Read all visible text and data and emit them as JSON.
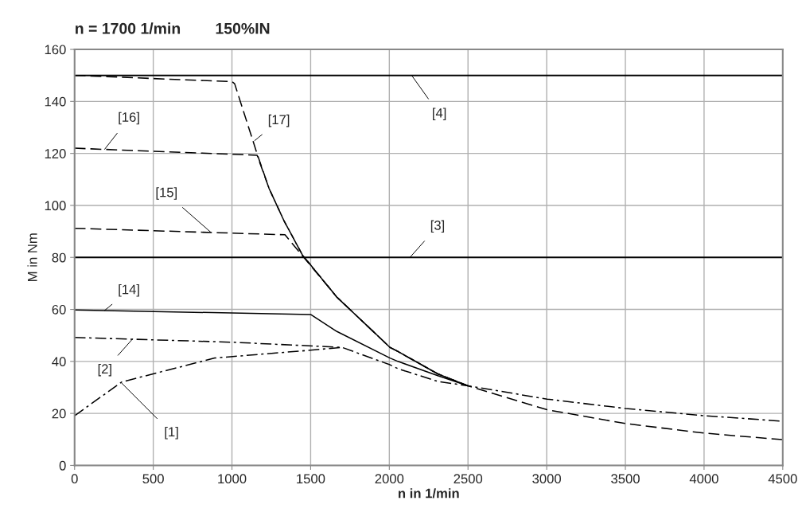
{
  "chart_data": {
    "type": "line",
    "title": "n = 1700 1/min        150%IN",
    "xlabel": "n in 1/min",
    "ylabel": "M in Nm",
    "xlim": [
      0,
      4500
    ],
    "xticks": [
      0,
      500,
      1000,
      1500,
      2000,
      2500,
      3000,
      3500,
      4000,
      4500
    ],
    "ylim": [
      0,
      160
    ],
    "yticks": [
      0,
      20,
      40,
      60,
      80,
      100,
      120,
      140,
      160
    ],
    "grid": true,
    "legend": false,
    "marker": "none",
    "series": [
      {
        "color": "#000000",
        "line_style": "solid",
        "x": [
          0,
          4500
        ],
        "values": [
          150,
          150
        ]
      },
      {
        "color": "#000000",
        "line_style": "solid",
        "x": [
          0,
          4500
        ],
        "values": [
          80,
          80
        ]
      },
      {
        "color": "#000000",
        "line_style": "dashed",
        "x": [
          0,
          1000,
          1017,
          1160,
          1236,
          1329,
          1447,
          1667,
          2004,
          2055,
          2308,
          2500,
          3003,
          3500,
          4003,
          4500
        ],
        "values": [
          150,
          147.6,
          146.8,
          119.8,
          106.5,
          94.3,
          81,
          64.7,
          45.4,
          43.8,
          35.2,
          30.6,
          21.4,
          16.1,
          12.4,
          9.9
        ]
      },
      {
        "color": "#000000",
        "line_style": "dashed",
        "x": [
          0,
          1160,
          1236,
          1329,
          1447,
          1667,
          2004,
          2055,
          2308,
          2500
        ],
        "values": [
          122,
          119.3,
          106.5,
          94.3,
          81,
          64.7,
          45.4,
          43.8,
          35.2,
          30.6
        ]
      },
      {
        "color": "#000000",
        "line_style": "dashed",
        "x": [
          0,
          1337,
          1498,
          1667,
          2004,
          2055,
          2308,
          2500
        ],
        "values": [
          91.2,
          88.7,
          77,
          64.7,
          45.4,
          43.8,
          35.2,
          30.6
        ]
      },
      {
        "color": "#000000",
        "line_style": "solid",
        "x": [
          0,
          1502,
          1667,
          2004,
          2055,
          2308,
          2500
        ],
        "values": [
          59.8,
          58,
          51.5,
          41.3,
          40,
          34.5,
          30.6
        ]
      },
      {
        "color": "#000000",
        "line_style": "dashdot",
        "x": [
          0,
          992,
          1700,
          2004,
          2055,
          2308,
          2500,
          3003,
          3500,
          4003,
          4500
        ],
        "values": [
          49.2,
          47.4,
          45.4,
          38.7,
          37.2,
          32.3,
          30.6,
          25.5,
          21.9,
          19.1,
          17.0
        ]
      },
      {
        "color": "#000000",
        "line_style": "dashdot",
        "x": [
          0,
          300,
          891,
          1498,
          1700
        ],
        "values": [
          19.1,
          32.1,
          41.3,
          44.3,
          45.4
        ]
      }
    ],
    "annotations": [
      {
        "text": "[4]",
        "x": 2142,
        "y": 150
      },
      {
        "text": "[3]",
        "x": 2131,
        "y": 80
      },
      {
        "text": "[17]",
        "x": 1144,
        "y": 124.9
      },
      {
        "text": "[16]",
        "x": 191,
        "y": 121.6
      },
      {
        "text": "[15]",
        "x": 865,
        "y": 89.7
      },
      {
        "text": "[14]",
        "x": 191,
        "y": 59.6
      },
      {
        "text": "[2]",
        "x": 368,
        "y": 48.6
      },
      {
        "text": "[1]",
        "x": 300,
        "y": 31.6
      }
    ]
  }
}
